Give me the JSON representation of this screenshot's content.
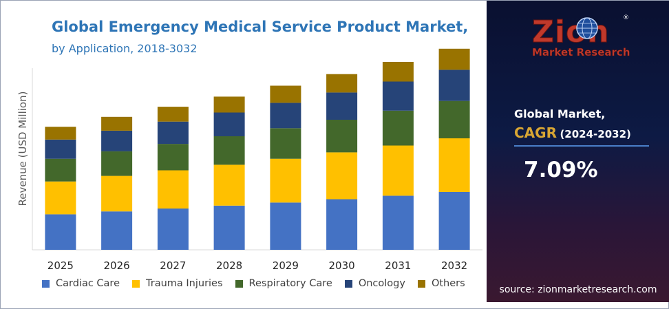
{
  "header": {
    "title": "Global Emergency Medical Service Product Market,",
    "subtitle": "by Application, 2018-3032"
  },
  "chart_data": {
    "type": "bar",
    "stacked": true,
    "title": "Global Emergency Medical Service Product Market, by Application, 2018-3032",
    "xlabel": "",
    "ylabel": "Revenue (USD Million)",
    "categories": [
      "2025",
      "2026",
      "2027",
      "2028",
      "2029",
      "2030",
      "2031",
      "2032"
    ],
    "ylim": [
      0,
      100
    ],
    "grid": false,
    "legend_position": "bottom",
    "series": [
      {
        "name": "Cardiac Care",
        "color": "#4472c4",
        "values": [
          17.2,
          18.6,
          20.0,
          21.4,
          22.9,
          24.5,
          26.2,
          28.0
        ]
      },
      {
        "name": "Trauma Injuries",
        "color": "#ffc000",
        "values": [
          15.9,
          17.2,
          18.5,
          19.8,
          21.2,
          22.7,
          24.3,
          26.0
        ]
      },
      {
        "name": "Respiratory Care",
        "color": "#43682b",
        "values": [
          11.0,
          11.9,
          12.8,
          13.8,
          14.8,
          15.8,
          16.9,
          18.1
        ]
      },
      {
        "name": "Oncology",
        "color": "#264478",
        "values": [
          9.3,
          10.0,
          10.8,
          11.5,
          12.3,
          13.2,
          14.1,
          15.1
        ]
      },
      {
        "name": "Others",
        "color": "#997300",
        "values": [
          6.2,
          6.7,
          7.2,
          7.7,
          8.3,
          8.9,
          9.5,
          10.2
        ]
      }
    ]
  },
  "panel": {
    "brand_top": "Zion",
    "brand_bottom": "Market Research",
    "registered_mark": "®",
    "global_market_label": "Global Market,",
    "cagr_label": "CAGR",
    "cagr_period": "(2024-2032)",
    "cagr_value": "7.09%",
    "source": "source: zionmarketresearch.com"
  },
  "colors": {
    "title": "#2e75b6",
    "panel_accent": "#d9a633",
    "divider": "#4a7fc8"
  }
}
